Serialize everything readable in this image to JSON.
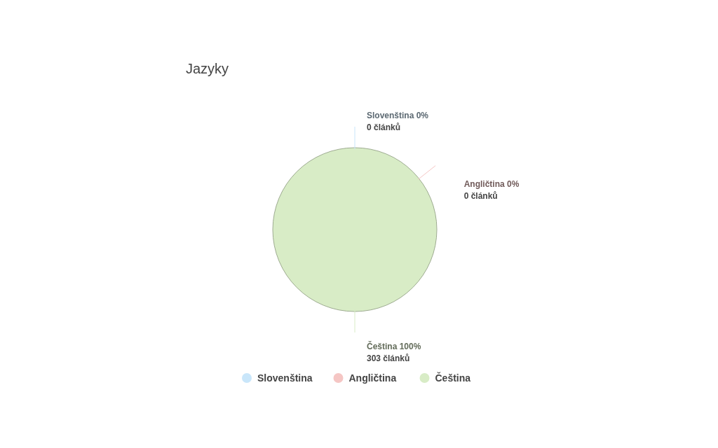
{
  "chart_data": {
    "type": "pie",
    "title": "Jazyky",
    "categories": [
      "Slovenština",
      "Angličtina",
      "Čeština"
    ],
    "values": [
      0,
      0,
      303
    ],
    "colors": [
      "#c9e6fa",
      "#f5c6c4",
      "#d8ecc6"
    ],
    "value_labels": [
      "Slovenština 0%\n0 článků",
      "Angličtina 0%\n0 článků",
      "Čeština 100%\n303 článků"
    ],
    "legend": "bottom"
  }
}
